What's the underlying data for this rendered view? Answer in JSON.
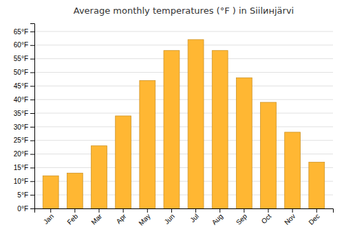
{
  "chart_data": {
    "type": "bar",
    "title": "Average monthly temperatures (°F ) in Siilинjärvi",
    "categories": [
      "Jan",
      "Feb",
      "Mar",
      "Apr",
      "May",
      "Jun",
      "Jul",
      "Aug",
      "Sep",
      "Oct",
      "Nov",
      "Dec"
    ],
    "values": [
      12,
      13,
      23,
      34,
      47,
      58,
      62,
      58,
      48,
      39,
      28,
      17
    ],
    "color": "#FFB733",
    "ylim": [
      0,
      68
    ],
    "yticks": [
      {
        "value": 0,
        "label": "0°F"
      },
      {
        "value": 5,
        "label": "5°F"
      },
      {
        "value": 10,
        "label": "10°F"
      },
      {
        "value": 15,
        "label": "15°F"
      },
      {
        "value": 20,
        "label": "20°F"
      },
      {
        "value": 25,
        "label": "25°F"
      },
      {
        "value": 30,
        "label": "30°F"
      },
      {
        "value": 35,
        "label": "35°F"
      },
      {
        "value": 40,
        "label": "40°F"
      },
      {
        "value": 45,
        "label": "45°F"
      },
      {
        "value": 50,
        "label": "50°F"
      },
      {
        "value": 55,
        "label": "55°F"
      },
      {
        "value": 60,
        "label": "60°F"
      },
      {
        "value": 65,
        "label": "65°F"
      }
    ],
    "grid": true
  }
}
